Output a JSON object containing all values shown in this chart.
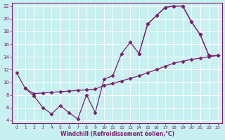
{
  "xlabel": "Windchill (Refroidissement éolien,°C)",
  "bg_color": "#c8f0f0",
  "grid_color": "#ffffff",
  "line_color": "#7b1f6e",
  "xlim": [
    -0.5,
    23.5
  ],
  "ylim": [
    3.5,
    22.5
  ],
  "xticks": [
    0,
    1,
    2,
    3,
    4,
    5,
    6,
    7,
    8,
    9,
    10,
    11,
    12,
    13,
    14,
    15,
    16,
    17,
    18,
    19,
    20,
    21,
    22,
    23
  ],
  "yticks": [
    4,
    6,
    8,
    10,
    12,
    14,
    16,
    18,
    20,
    22
  ],
  "line_zigzag_x": [
    0,
    1,
    2,
    3,
    4,
    5,
    6,
    7,
    8,
    9,
    10,
    11,
    12,
    13,
    14,
    15,
    16,
    17,
    18,
    19,
    20,
    21,
    22
  ],
  "line_zigzag_y": [
    11.5,
    9.0,
    7.8,
    6.0,
    5.0,
    6.3,
    5.2,
    4.2,
    8.0,
    5.2,
    10.5,
    11.0,
    14.5,
    16.3,
    14.5,
    19.2,
    20.5,
    21.8,
    22.0,
    22.0,
    19.5,
    17.5,
    14.2
  ],
  "line_diag_x": [
    1,
    2,
    3,
    4,
    5,
    6,
    7,
    8,
    9,
    10,
    11,
    12,
    13,
    14,
    15,
    16,
    17,
    18,
    19,
    20,
    21,
    22,
    23
  ],
  "line_diag_y": [
    9.0,
    8.2,
    8.3,
    8.4,
    8.5,
    8.6,
    8.7,
    8.8,
    8.9,
    9.5,
    9.8,
    10.2,
    10.6,
    11.0,
    11.5,
    12.0,
    12.5,
    13.0,
    13.3,
    13.6,
    13.8,
    14.0,
    14.2
  ],
  "line_upper_x": [
    14,
    15,
    16,
    17,
    18,
    19,
    20,
    21,
    22,
    23
  ],
  "line_upper_y": [
    14.5,
    19.2,
    20.5,
    21.8,
    22.0,
    22.0,
    19.5,
    17.5,
    14.2,
    14.2
  ]
}
